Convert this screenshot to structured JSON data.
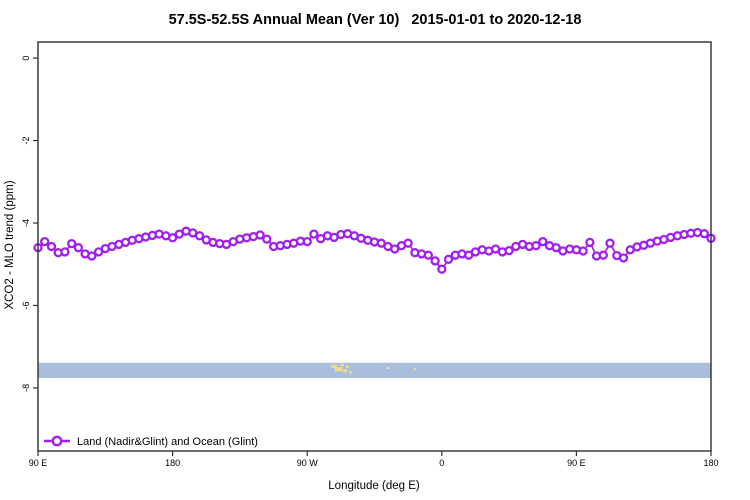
{
  "header": {
    "title_left": "57.5S-52.5S Annual Mean (Ver 10)",
    "title_right": "2015-01-01 to 2020-12-18"
  },
  "chart_data": {
    "type": "line",
    "title": "57.5S-52.5S Annual Mean (Ver 10)  2015-01-01 to 2020-12-18",
    "xlabel": "Longitude (deg E)",
    "ylabel": "XCO2 - MLO trend (ppm)",
    "xlim": [
      90,
      540
    ],
    "ylim": [
      -9.53,
      0.39
    ],
    "grid": false,
    "x_ticks": [
      {
        "value": 90,
        "label": "90 E"
      },
      {
        "value": 180,
        "label": "180"
      },
      {
        "value": 270,
        "label": "90 W"
      },
      {
        "value": 360,
        "label": "0"
      },
      {
        "value": 450,
        "label": "90 E"
      },
      {
        "value": 540,
        "label": "180"
      }
    ],
    "y_ticks": [
      {
        "value": 0,
        "label": "0"
      },
      {
        "value": -2,
        "label": "-2"
      },
      {
        "value": -4,
        "label": "-4"
      },
      {
        "value": -6,
        "label": "-6"
      },
      {
        "value": -8,
        "label": "-8"
      }
    ],
    "legend": {
      "position": "bottom-left",
      "label": "Land (Nadir&Glint) and Ocean (Glint)"
    },
    "series": [
      {
        "name": "Land (Nadir&Glint) and Ocean (Glint)",
        "marker": "open-circle",
        "color": "#A020F0",
        "x": [
          90,
          94.5,
          99,
          103.5,
          108,
          112.5,
          117,
          121.5,
          126,
          130.5,
          135,
          139.5,
          144,
          148.5,
          153,
          157.5,
          162,
          166.5,
          171,
          175.5,
          180,
          184.5,
          189,
          193.5,
          198,
          202.5,
          207,
          211.5,
          216,
          220.5,
          225,
          229.5,
          234,
          238.5,
          243,
          247.5,
          252,
          256.5,
          261,
          265.5,
          270,
          274.5,
          279,
          283.5,
          288,
          292.5,
          297,
          301.5,
          306,
          310.5,
          315,
          319.5,
          324,
          328.5,
          333,
          337.5,
          342,
          346.5,
          351,
          355.5,
          360,
          364.5,
          369,
          373.5,
          378,
          382.5,
          387,
          391.5,
          396,
          400.5,
          405,
          409.5,
          414,
          418.5,
          423,
          427.5,
          432,
          436.5,
          441,
          445.5,
          450,
          454.5,
          459,
          463.5,
          468,
          472.5,
          477,
          481.5,
          486,
          490.5,
          495,
          499.5,
          504,
          508.5,
          513,
          517.5,
          522,
          526.5,
          531,
          535.5,
          540
        ],
        "y": [
          -4.6,
          -4.45,
          -4.57,
          -4.72,
          -4.7,
          -4.5,
          -4.6,
          -4.75,
          -4.8,
          -4.7,
          -4.62,
          -4.57,
          -4.52,
          -4.47,
          -4.42,
          -4.38,
          -4.34,
          -4.3,
          -4.27,
          -4.31,
          -4.36,
          -4.27,
          -4.2,
          -4.24,
          -4.31,
          -4.41,
          -4.47,
          -4.5,
          -4.52,
          -4.45,
          -4.39,
          -4.36,
          -4.33,
          -4.29,
          -4.39,
          -4.57,
          -4.55,
          -4.52,
          -4.49,
          -4.44,
          -4.45,
          -4.27,
          -4.38,
          -4.31,
          -4.35,
          -4.28,
          -4.26,
          -4.31,
          -4.37,
          -4.42,
          -4.46,
          -4.49,
          -4.57,
          -4.63,
          -4.55,
          -4.49,
          -4.72,
          -4.75,
          -4.78,
          -4.92,
          -5.12,
          -4.88,
          -4.78,
          -4.75,
          -4.78,
          -4.7,
          -4.65,
          -4.68,
          -4.63,
          -4.7,
          -4.67,
          -4.57,
          -4.52,
          -4.57,
          -4.55,
          -4.45,
          -4.55,
          -4.6,
          -4.68,
          -4.63,
          -4.65,
          -4.68,
          -4.47,
          -4.8,
          -4.78,
          -4.49,
          -4.79,
          -4.85,
          -4.65,
          -4.58,
          -4.54,
          -4.49,
          -4.44,
          -4.4,
          -4.35,
          -4.31,
          -4.28,
          -4.25,
          -4.23,
          -4.26,
          -4.37
        ]
      }
    ],
    "ocean_band": {
      "color": "#A9BEDC",
      "ppm_top": -7.39,
      "ppm_bottom": -7.76
    },
    "land_marks": {
      "color": "#F2DC85",
      "rects": [
        {
          "lon": 285.9,
          "ppm": -7.44,
          "dlon": 4.0,
          "dppm": 0.08
        },
        {
          "lon": 288.5,
          "ppm": -7.5,
          "dlon": 5.0,
          "dppm": 0.1
        },
        {
          "lon": 292.3,
          "ppm": -7.42,
          "dlon": 2.2,
          "dppm": 0.05
        },
        {
          "lon": 293.9,
          "ppm": -7.55,
          "dlon": 2.8,
          "dppm": 0.07
        },
        {
          "lon": 295.9,
          "ppm": -7.47,
          "dlon": 2.1,
          "dppm": 0.05
        },
        {
          "lon": 297.9,
          "ppm": -7.6,
          "dlon": 2.1,
          "dppm": 0.05
        },
        {
          "lon": 323.3,
          "ppm": -7.49,
          "dlon": 2.0,
          "dppm": 0.05
        },
        {
          "lon": 341.4,
          "ppm": -7.52,
          "dlon": 1.4,
          "dppm": 0.05
        }
      ]
    }
  },
  "colors": {
    "series": "#A020F0",
    "ocean_band": "#A9BEDC",
    "land": "#F2DC85",
    "axis": "#2e2e2e",
    "background": "#ffffff"
  }
}
